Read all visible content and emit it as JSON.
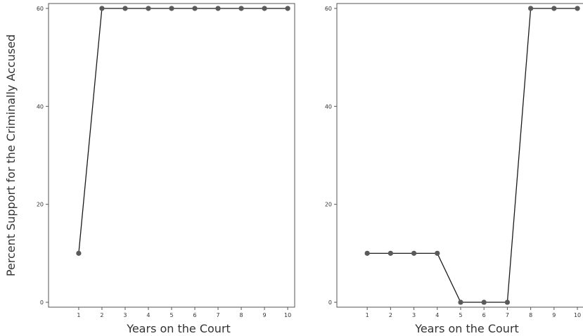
{
  "chart_data": [
    {
      "type": "line",
      "title": "",
      "xlabel": "Years on the Court",
      "ylabel": "Percent Support for the Criminally Accused",
      "x": [
        1,
        2,
        3,
        4,
        5,
        6,
        7,
        8,
        9,
        10
      ],
      "series": [
        {
          "values": [
            10,
            60,
            60,
            60,
            60,
            60,
            60,
            60,
            60,
            60
          ]
        }
      ],
      "xticks": [
        "1",
        "2",
        "3",
        "4",
        "5",
        "6",
        "7",
        "8",
        "9",
        "10"
      ],
      "yticks": [
        "0",
        "20",
        "40",
        "60"
      ],
      "xlim": [
        -0.3,
        10.3
      ],
      "ylim": [
        -1,
        61
      ],
      "grid": false,
      "colors": {
        "line": "#1a1a1a",
        "marker": "#5a5a5a",
        "frame": "#555555"
      }
    },
    {
      "type": "line",
      "title": "",
      "xlabel": "Years on the Court",
      "ylabel": "",
      "x": [
        1,
        2,
        3,
        4,
        5,
        6,
        7,
        8,
        9,
        10
      ],
      "series": [
        {
          "values": [
            10,
            10,
            10,
            10,
            0,
            0,
            0,
            60,
            60,
            60
          ]
        }
      ],
      "xticks": [
        "1",
        "2",
        "3",
        "4",
        "5",
        "6",
        "7",
        "8",
        "9",
        "10"
      ],
      "yticks": [
        "0",
        "20",
        "40",
        "60"
      ],
      "xlim": [
        -0.3,
        10.3
      ],
      "ylim": [
        -1,
        61
      ],
      "grid": false,
      "colors": {
        "line": "#1a1a1a",
        "marker": "#5a5a5a",
        "frame": "#555555"
      }
    }
  ]
}
